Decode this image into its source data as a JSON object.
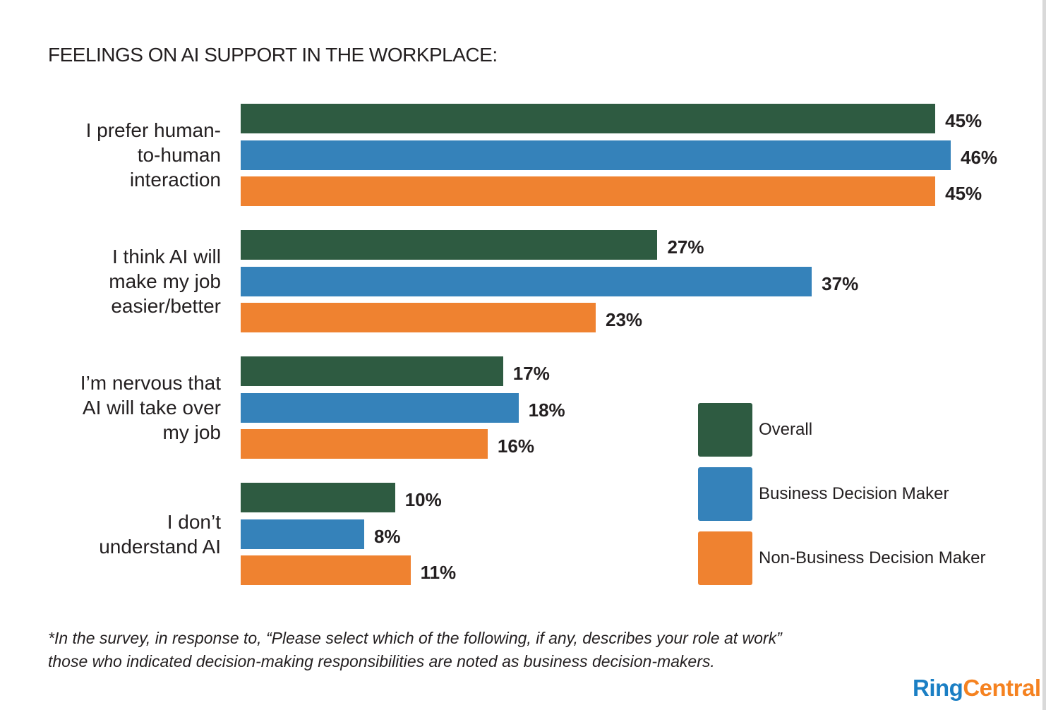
{
  "chart_data": {
    "type": "bar",
    "orientation": "horizontal",
    "title": "FEELINGS ON AI SUPPORT IN THE WORKPLACE:",
    "categories": [
      [
        "I prefer human-",
        "to-human",
        "interaction"
      ],
      [
        "I think AI will",
        "make my job",
        "easier/better"
      ],
      [
        "I’m nervous that",
        "AI will take over",
        "my job"
      ],
      [
        "I don’t",
        "understand AI"
      ]
    ],
    "series": [
      {
        "name": "Overall",
        "color": "#2e5b41",
        "values": [
          45,
          27,
          17,
          10
        ]
      },
      {
        "name": "Business Decision Maker",
        "color": "#3582ba",
        "values": [
          46,
          37,
          18,
          8
        ]
      },
      {
        "name": "Non-Business Decision Maker",
        "color": "#ef8230",
        "values": [
          45,
          23,
          16,
          11
        ]
      }
    ],
    "value_suffix": "%",
    "xlim": [
      0,
      46
    ],
    "legend_position": "bottom-right"
  },
  "footnote": [
    "*In the survey, in response to, “Please select which of the following, if any, describes your role at work”",
    "those who indicated decision-making responsibilities are noted as business decision-makers."
  ],
  "logo": {
    "part1": "Ring",
    "part2": "Central"
  }
}
